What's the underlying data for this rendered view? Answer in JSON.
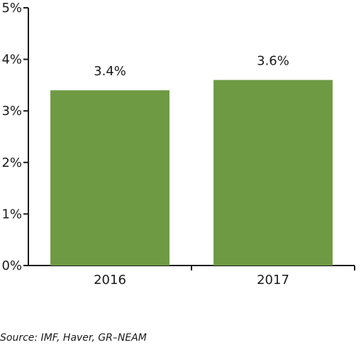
{
  "chart_data": {
    "type": "bar",
    "categories": [
      "2016",
      "2017"
    ],
    "values": [
      3.4,
      3.6
    ],
    "data_labels": [
      "3.4%",
      "3.6%"
    ],
    "title": "",
    "xlabel": "",
    "ylabel": "",
    "ylim": [
      0,
      5
    ],
    "yticks": [
      0,
      1,
      2,
      3,
      4,
      5
    ],
    "ytick_labels": [
      "0%",
      "1%",
      "2%",
      "3%",
      "4%",
      "5%"
    ],
    "grid": false,
    "legend": "none",
    "bar_color": "#6e9a44"
  },
  "source": "Source: IMF, Haver, GR–NEAM"
}
